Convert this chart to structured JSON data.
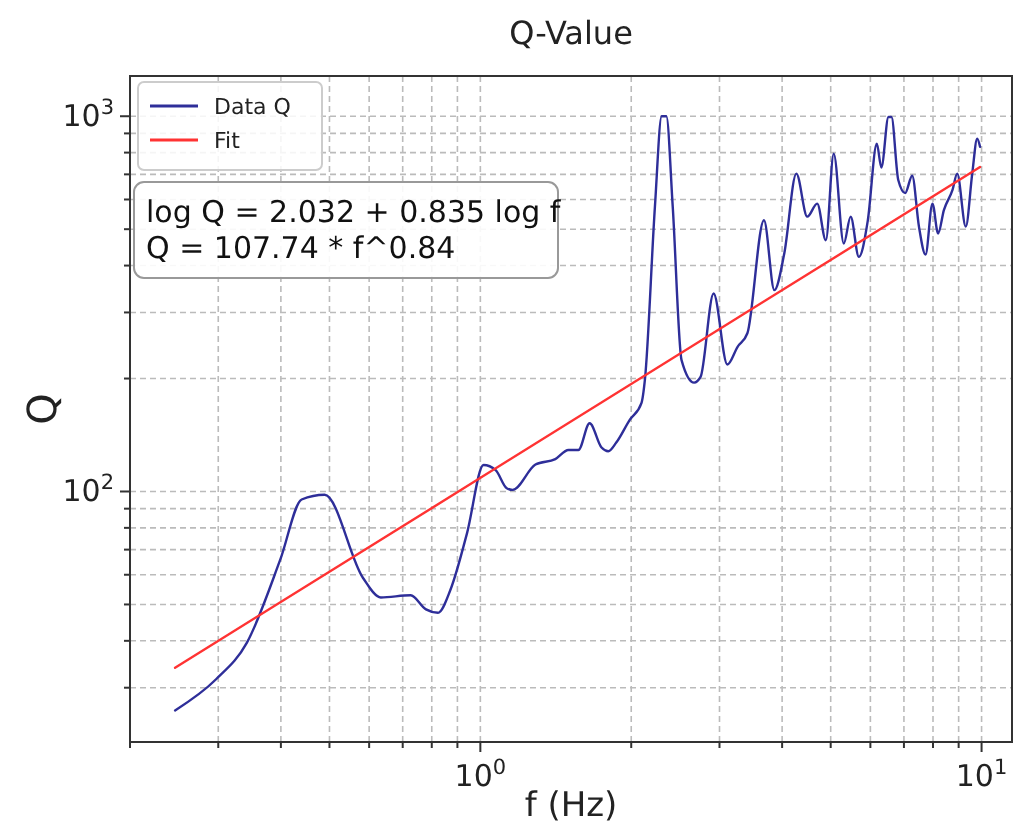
{
  "chart_data": {
    "type": "line",
    "title": "Q-Value",
    "xlabel": "f (Hz)",
    "ylabel": "Q",
    "log": "xy",
    "grid": true,
    "legend": "top left",
    "line_style": "solid",
    "xlim": [
      0.2,
      11.5
    ],
    "ylim": [
      21.5,
      1280
    ],
    "xticks": [
      {
        "value": 0.2,
        "label": null
      },
      {
        "value": 0.3,
        "label": null
      },
      {
        "value": 0.4,
        "label": null
      },
      {
        "value": 0.5,
        "label": null
      },
      {
        "value": 0.6,
        "label": null
      },
      {
        "value": 0.7,
        "label": null
      },
      {
        "value": 0.8,
        "label": null
      },
      {
        "value": 0.9,
        "label": null
      },
      {
        "value": 1,
        "label": "10$^{0}$"
      },
      {
        "value": 2,
        "label": null
      },
      {
        "value": 3,
        "label": null
      },
      {
        "value": 4,
        "label": null
      },
      {
        "value": 5,
        "label": null
      },
      {
        "value": 6,
        "label": null
      },
      {
        "value": 7,
        "label": null
      },
      {
        "value": 8,
        "label": null
      },
      {
        "value": 9,
        "label": null
      },
      {
        "value": 10,
        "label": "10$^{1}$"
      }
    ],
    "yticks": [
      {
        "value": 30,
        "label": null
      },
      {
        "value": 40,
        "label": null
      },
      {
        "value": 50,
        "label": null
      },
      {
        "value": 60,
        "label": null
      },
      {
        "value": 70,
        "label": null
      },
      {
        "value": 80,
        "label": null
      },
      {
        "value": 90,
        "label": null
      },
      {
        "value": 100,
        "label": "10$^{2}$"
      },
      {
        "value": 200,
        "label": null
      },
      {
        "value": 300,
        "label": null
      },
      {
        "value": 400,
        "label": null
      },
      {
        "value": 500,
        "label": null
      },
      {
        "value": 600,
        "label": null
      },
      {
        "value": 700,
        "label": null
      },
      {
        "value": 800,
        "label": null
      },
      {
        "value": 900,
        "label": null
      },
      {
        "value": 1000,
        "label": "10$^{3}$"
      }
    ],
    "annotations": [
      "log Q = 2.032 + 0.835 log f",
      "Q = 107.74 * f^0.84"
    ],
    "series": [
      {
        "name": "Data Q",
        "color": "#2e2e99",
        "x": [
          0.246,
          0.297,
          0.342,
          0.399,
          0.44,
          0.489,
          0.583,
          0.633,
          0.726,
          0.779,
          0.823,
          0.872,
          0.941,
          1.015,
          1.073,
          1.129,
          1.16,
          1.288,
          1.411,
          1.499,
          1.569,
          1.652,
          1.745,
          1.8,
          1.867,
          1.985,
          2.096,
          2.13,
          2.23,
          2.3,
          2.35,
          2.42,
          2.52,
          2.67,
          2.75,
          2.92,
          3.11,
          3.26,
          3.41,
          3.68,
          3.86,
          4.04,
          4.27,
          4.49,
          4.7,
          4.89,
          5.07,
          5.31,
          5.48,
          5.69,
          5.93,
          6.18,
          6.31,
          6.52,
          6.61,
          6.82,
          7.04,
          7.27,
          7.5,
          7.73,
          7.98,
          8.19,
          8.41,
          8.75,
          8.94,
          9.3,
          9.58,
          9.8,
          9.93
        ],
        "values": [
          26.1,
          31.6,
          39.5,
          65.9,
          95.2,
          98,
          58.9,
          52.2,
          52.9,
          48.5,
          47.5,
          54.8,
          77.6,
          117.7,
          114,
          102,
          101,
          118,
          122,
          129,
          129,
          152,
          131,
          128,
          135,
          155,
          172,
          199,
          574,
          1000,
          1000,
          574,
          224,
          195,
          202,
          337,
          218,
          243,
          264,
          528,
          344,
          431,
          703,
          540,
          585,
          467,
          795,
          458,
          540,
          422,
          528,
          845,
          730,
          995,
          995,
          676,
          624,
          694,
          508,
          428,
          585,
          487,
          562,
          636,
          703,
          508,
          703,
          871,
          829
        ]
      },
      {
        "name": "Fit",
        "color": "#ff3333",
        "x": [
          0.246,
          9.93
        ],
        "values": [
          33.9,
          732
        ]
      }
    ]
  }
}
